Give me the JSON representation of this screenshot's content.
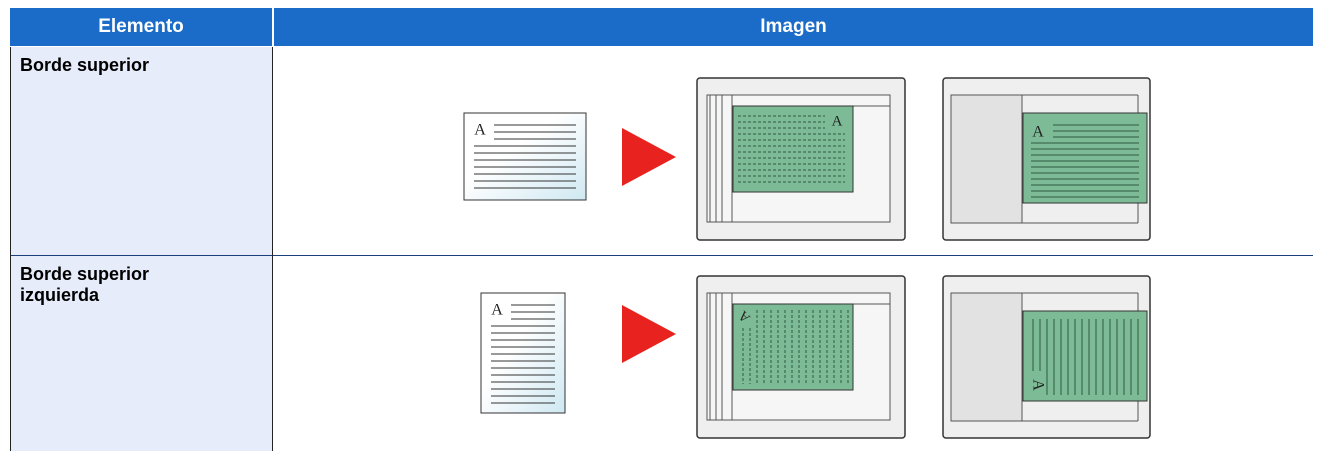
{
  "table": {
    "header": [
      "Elemento",
      "Imagen"
    ],
    "rows": [
      [
        "Borde superior"
      ],
      [
        "Borde superior izquierda"
      ]
    ]
  },
  "illustration_letter": "A"
}
